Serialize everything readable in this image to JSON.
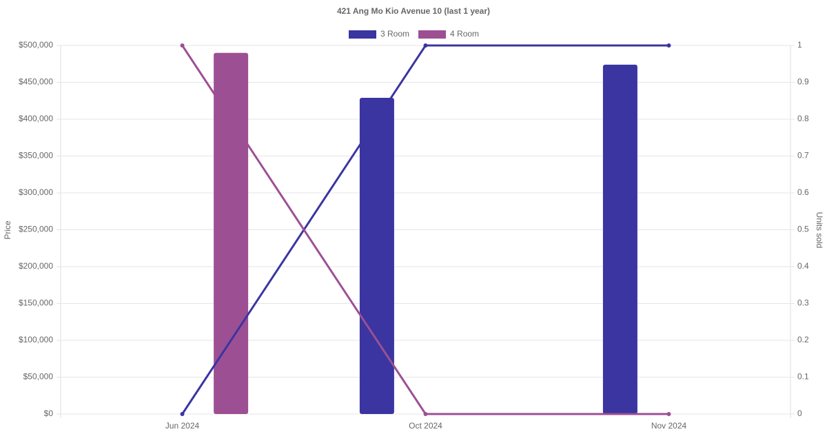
{
  "chart_data": {
    "type": "combo",
    "title": "421 Ang Mo Kio Avenue 10 (last 1 year)",
    "categories": [
      "Jun 2024",
      "Oct 2024",
      "Nov 2024"
    ],
    "y_label": "Price",
    "y2_label": "Units sold",
    "ylim": [
      0,
      500000
    ],
    "yticks": [
      {
        "value": 0,
        "label": "$0"
      },
      {
        "value": 50000,
        "label": "$50,000"
      },
      {
        "value": 100000,
        "label": "$100,000"
      },
      {
        "value": 150000,
        "label": "$150,000"
      },
      {
        "value": 200000,
        "label": "$200,000"
      },
      {
        "value": 250000,
        "label": "$250,000"
      },
      {
        "value": 300000,
        "label": "$300,000"
      },
      {
        "value": 350000,
        "label": "$350,000"
      },
      {
        "value": 400000,
        "label": "$400,000"
      },
      {
        "value": 450000,
        "label": "$450,000"
      },
      {
        "value": 500000,
        "label": "$500,000"
      }
    ],
    "y2lim": [
      0,
      1
    ],
    "y2ticks": [
      0,
      0.1,
      0.2,
      0.3,
      0.4,
      0.5,
      0.6,
      0.7,
      0.8,
      0.9,
      1
    ],
    "grid": true,
    "series": [
      {
        "name": "3 Room",
        "type": "bar",
        "color": "#3a35a0",
        "values": [
          null,
          429000,
          474000
        ]
      },
      {
        "name": "4 Room",
        "type": "bar",
        "color": "#9d4f94",
        "values": [
          490000,
          null,
          null
        ]
      },
      {
        "type": "line",
        "axis": "y2",
        "color": "#3a35a0",
        "values": [
          0,
          1,
          1
        ]
      },
      {
        "type": "line",
        "axis": "y2",
        "color": "#9d4f94",
        "values": [
          1,
          0,
          0
        ]
      }
    ]
  }
}
